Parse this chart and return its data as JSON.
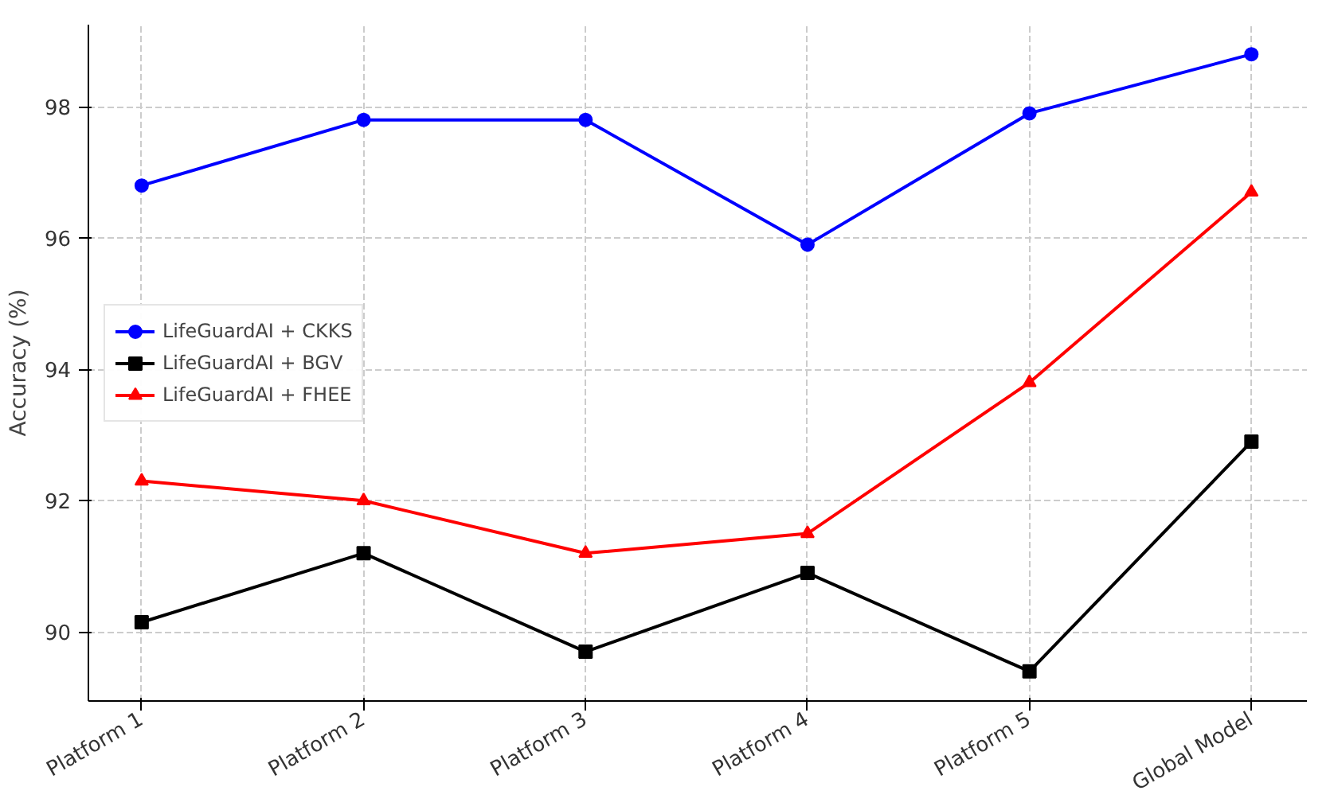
{
  "chart_data": {
    "type": "line",
    "ylabel": "Accuracy (%)",
    "categories": [
      "Platform 1",
      "Platform 2",
      "Platform 3",
      "Platform 4",
      "Platform 5",
      "Global Model"
    ],
    "series": [
      {
        "name": "LifeGuardAI + CKKS",
        "color": "#0000ff",
        "marker": "circle",
        "values": [
          96.8,
          97.8,
          97.8,
          95.9,
          97.9,
          98.8
        ]
      },
      {
        "name": "LifeGuardAI + BGV",
        "color": "#000000",
        "marker": "square",
        "values": [
          90.15,
          91.2,
          89.7,
          90.9,
          89.4,
          92.9
        ]
      },
      {
        "name": "LifeGuardAI + FHEE",
        "color": "#ff0000",
        "marker": "triangle",
        "values": [
          92.3,
          92.0,
          91.2,
          91.5,
          93.8,
          96.7
        ]
      }
    ],
    "ylim": [
      88.95,
      99.25
    ],
    "yticks": [
      90,
      92,
      94,
      96,
      98
    ],
    "grid": true,
    "legend": "left",
    "line_style": "solid"
  }
}
